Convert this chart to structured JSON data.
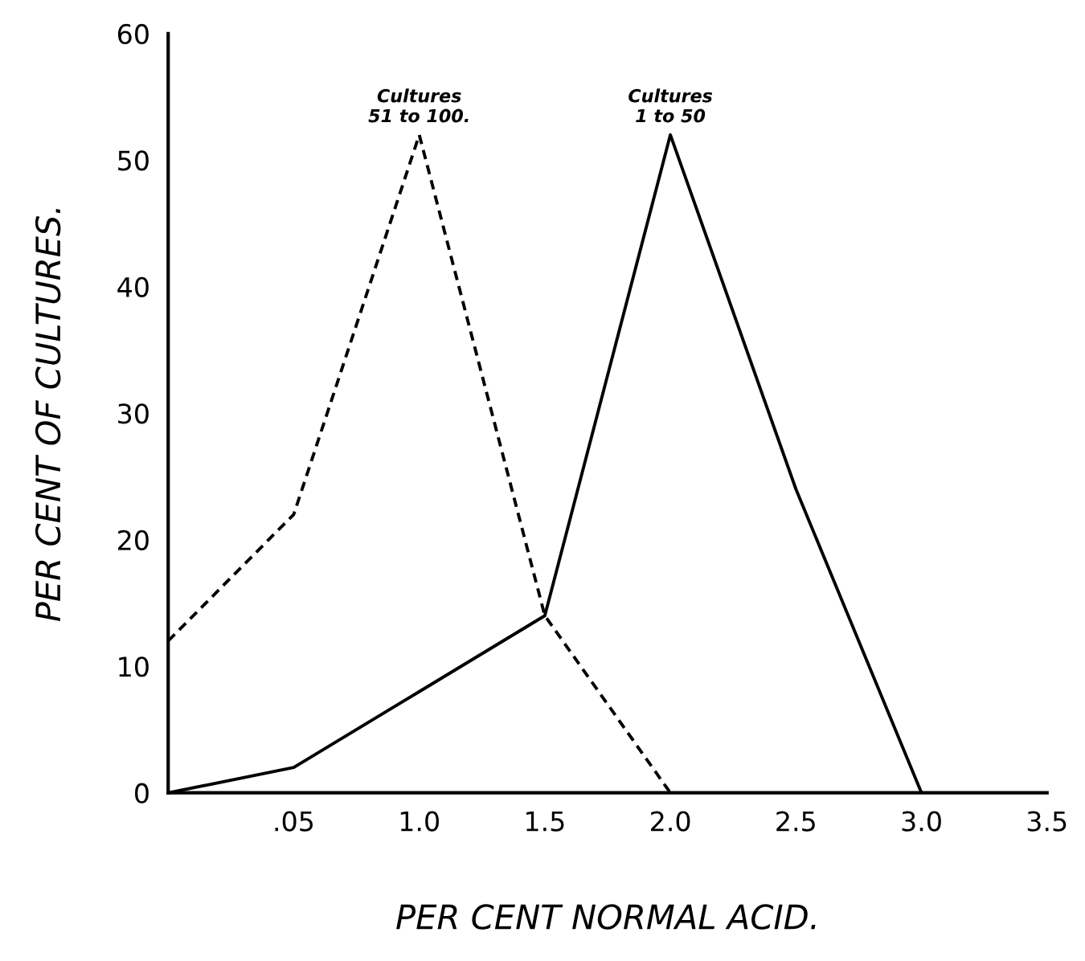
{
  "chart_data": {
    "type": "line",
    "xlabel": "PER CENT NORMAL ACID.",
    "ylabel": "PER CENT OF CULTURES.",
    "categories": [
      null,
      ".05",
      "1.0",
      "1.5",
      "2.0",
      "2.5",
      "3.0",
      "3.5"
    ],
    "series": [
      {
        "color": "#000000",
        "line_style": "dashed",
        "values": [
          12,
          22,
          52,
          14,
          0,
          null,
          null,
          null
        ]
      },
      {
        "color": "#000000",
        "line_style": "solid",
        "values": [
          0,
          2,
          8,
          14,
          52,
          24,
          0,
          null
        ]
      }
    ],
    "annotations": [
      {
        "text": "Cultures\n51 to 100.",
        "x": "1.0",
        "y": 52
      },
      {
        "text": "Cultures\n1 to 50",
        "x": "2.0",
        "y": 52
      }
    ],
    "ylim": [
      0,
      60
    ],
    "yticks": [
      0,
      10,
      20,
      30,
      40,
      50,
      60
    ],
    "grid": false
  }
}
